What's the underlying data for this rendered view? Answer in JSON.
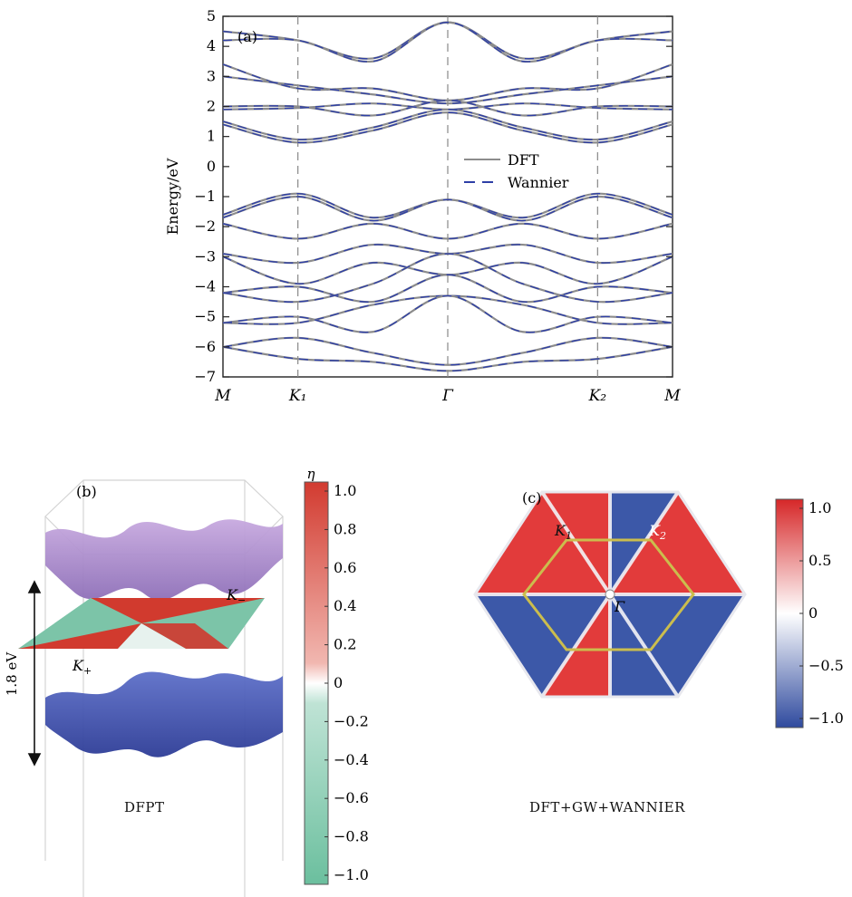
{
  "panel_a": {
    "tag": "(a)",
    "ylabel": "Energy/eV",
    "legend": [
      "DFT",
      "Wannier"
    ]
  },
  "panel_b": {
    "tag": "(b)",
    "colorbar_title": "η",
    "gap_label": "1.8 eV",
    "k_minus": "K−",
    "k_plus": "K+",
    "caption": "DFPT"
  },
  "panel_c": {
    "tag": "(c)",
    "k1": "K1",
    "k2": "K2",
    "gamma": "Γ",
    "caption": "DFT+GW+WANNIER"
  },
  "colors": {
    "dft": "#8c8c8c",
    "wannier": "#2e3fa6",
    "red": "#d93b3b",
    "blue": "#3c58a8",
    "teal": "#7cc4a8",
    "purple": "#a889c8",
    "hexagon": "#c8b84a"
  },
  "chart_data": [
    {
      "type": "line",
      "title": "(a)",
      "ylabel": "Energy/eV",
      "xlabel": "",
      "ylim": [
        -7,
        5
      ],
      "yticks": [
        -7,
        -6,
        -5,
        -4,
        -3,
        -2,
        -1,
        0,
        1,
        2,
        3,
        4,
        5
      ],
      "x_ticks": [
        {
          "label": "M",
          "pos": 0
        },
        {
          "label": "K₁",
          "pos": 1
        },
        {
          "label": "Γ",
          "pos": 3
        },
        {
          "label": "K₂",
          "pos": 5
        },
        {
          "label": "M",
          "pos": 6
        }
      ],
      "x_range": [
        0,
        6
      ],
      "legend_position": "center-right",
      "grid": false,
      "series": [
        {
          "name": "DFT",
          "style": "solid"
        },
        {
          "name": "Wannier",
          "style": "dashed"
        }
      ],
      "bands": [
        [
          4.5,
          4.2,
          3.6,
          4.8,
          3.6,
          4.2,
          4.5
        ],
        [
          4.2,
          4.2,
          3.5,
          4.8,
          3.5,
          4.2,
          4.2
        ],
        [
          3.4,
          2.6,
          2.6,
          2.2,
          2.6,
          2.6,
          3.4
        ],
        [
          3.0,
          2.7,
          2.4,
          2.1,
          2.4,
          2.7,
          3.0
        ],
        [
          2.0,
          2.0,
          1.7,
          2.2,
          1.7,
          2.0,
          2.0
        ],
        [
          1.9,
          1.95,
          2.1,
          1.9,
          2.1,
          1.95,
          1.9
        ],
        [
          1.5,
          0.9,
          1.3,
          1.9,
          1.3,
          0.9,
          1.5
        ],
        [
          1.4,
          0.8,
          1.2,
          1.8,
          1.2,
          0.8,
          1.4
        ],
        [
          -1.6,
          -0.9,
          -1.7,
          -1.1,
          -1.7,
          -0.9,
          -1.6
        ],
        [
          -1.7,
          -1.0,
          -1.8,
          -1.1,
          -1.8,
          -1.0,
          -1.7
        ],
        [
          -1.9,
          -2.4,
          -1.9,
          -2.4,
          -1.9,
          -2.4,
          -1.9
        ],
        [
          -2.9,
          -3.2,
          -2.6,
          -2.9,
          -2.6,
          -3.2,
          -2.9
        ],
        [
          -3.0,
          -3.9,
          -3.2,
          -3.6,
          -3.2,
          -3.9,
          -3.0
        ],
        [
          -4.2,
          -4.0,
          -4.5,
          -3.6,
          -4.5,
          -4.0,
          -4.2
        ],
        [
          -4.2,
          -4.5,
          -3.9,
          -2.9,
          -3.9,
          -4.5,
          -4.2
        ],
        [
          -5.2,
          -5.2,
          -4.6,
          -4.3,
          -4.6,
          -5.2,
          -5.2
        ],
        [
          -5.2,
          -5.0,
          -5.5,
          -4.3,
          -5.5,
          -5.0,
          -5.2
        ],
        [
          -6.0,
          -5.7,
          -6.2,
          -6.6,
          -6.2,
          -5.7,
          -6.0
        ],
        [
          -6.0,
          -6.4,
          -6.5,
          -6.8,
          -6.5,
          -6.4,
          -6.0
        ]
      ]
    },
    {
      "type": "heatmap",
      "title": "(b)",
      "colorbar_label": "η",
      "colorbar_ticks": [
        "1.0",
        "0.8",
        "0.6",
        "0.4",
        "0.2",
        "0",
        "−0.2",
        "−0.4",
        "−0.6",
        "−0.8",
        "−1.0"
      ],
      "clim": [
        -1.0,
        1.0
      ]
    },
    {
      "type": "heatmap",
      "title": "(c)",
      "colorbar_ticks": [
        "1.0",
        "0.5",
        "0",
        "−0.5",
        "−1.0"
      ],
      "clim": [
        -1.0,
        1.0
      ]
    }
  ]
}
